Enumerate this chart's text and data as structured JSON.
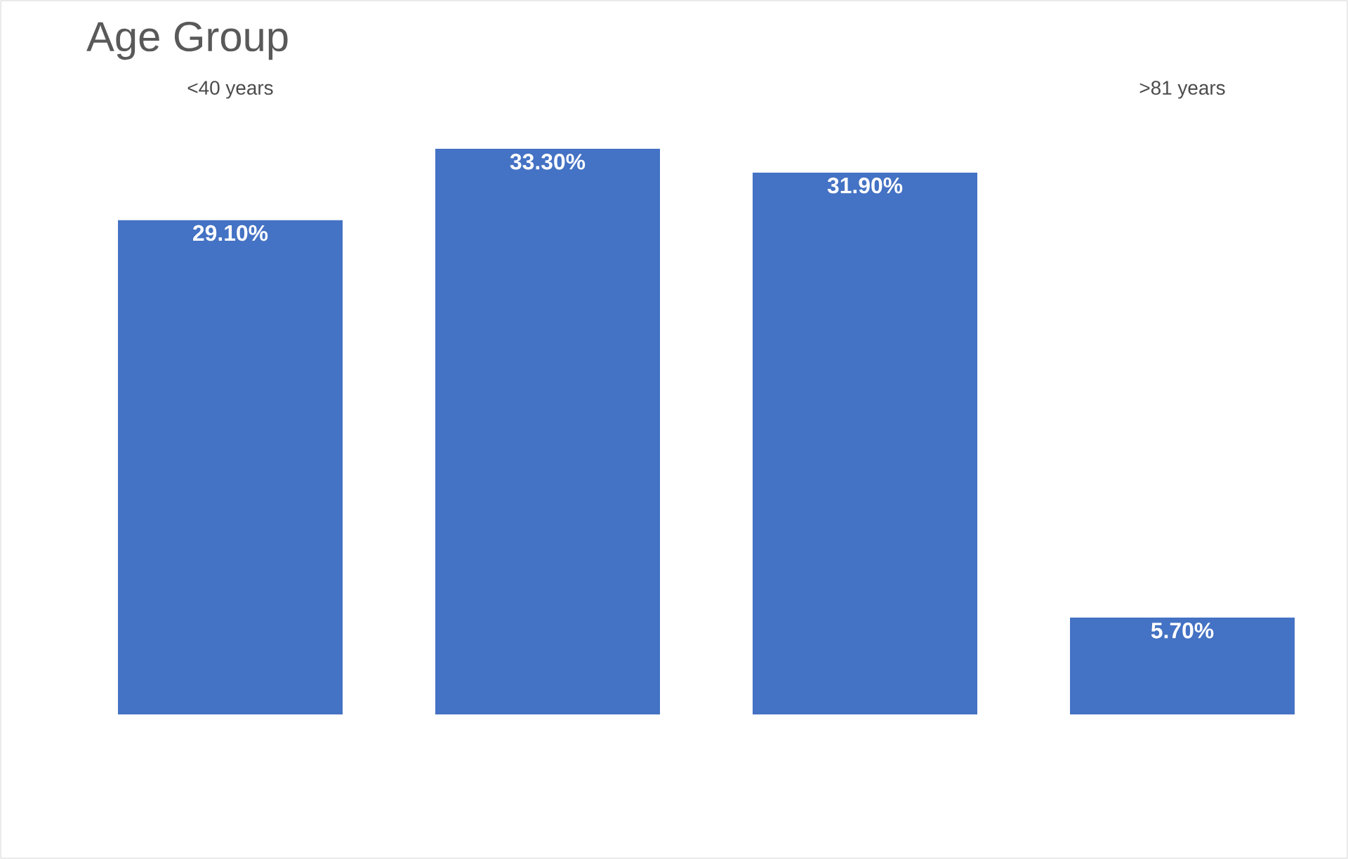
{
  "chart_data": {
    "type": "bar",
    "title": "Age Group",
    "categories": [
      "<40 years",
      null,
      null,
      ">81 years"
    ],
    "values": [
      29.1,
      33.3,
      31.9,
      5.7
    ],
    "value_labels": [
      "29.10%",
      "33.30%",
      "31.90%",
      "5.70%"
    ],
    "color": "#4472c4"
  }
}
